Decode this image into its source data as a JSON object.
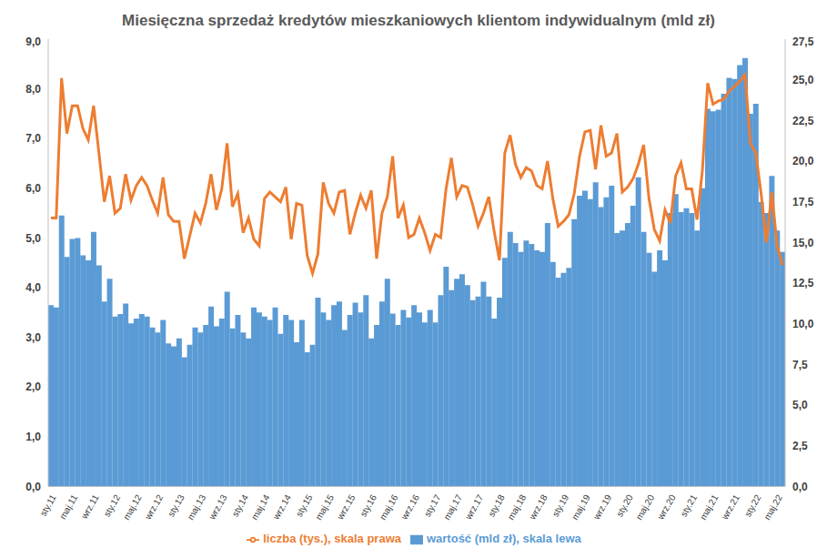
{
  "chart_data": {
    "type": "bar",
    "title": "Miesięczna sprzedaż kredytów mieszkaniowych klientom indywidualnym (mld zł)",
    "categories": [
      "sty.11",
      null,
      null,
      null,
      "maj.11",
      null,
      null,
      null,
      "wrz.11",
      null,
      null,
      null,
      "sty.12",
      null,
      null,
      null,
      "maj.12",
      null,
      null,
      null,
      "wrz.12",
      null,
      null,
      null,
      "sty.13",
      null,
      null,
      null,
      "maj.13",
      null,
      null,
      null,
      "wrz.13",
      null,
      null,
      null,
      "sty.14",
      null,
      null,
      null,
      "maj.14",
      null,
      null,
      null,
      "wrz.14",
      null,
      null,
      null,
      "sty.15",
      null,
      null,
      null,
      "maj.15",
      null,
      null,
      null,
      "wrz.15",
      null,
      null,
      null,
      "sty.16",
      null,
      null,
      null,
      "maj.16",
      null,
      null,
      null,
      "wrz.16",
      null,
      null,
      null,
      "sty.17",
      null,
      null,
      null,
      "maj.17",
      null,
      null,
      null,
      "wrz.17",
      null,
      null,
      null,
      "sty.18",
      null,
      null,
      null,
      "maj.18",
      null,
      null,
      null,
      "wrz.18",
      null,
      null,
      null,
      "sty.19",
      null,
      null,
      null,
      "maj.19",
      null,
      null,
      null,
      "wrz.19",
      null,
      null,
      null,
      "sty.20",
      null,
      null,
      null,
      "maj.20",
      null,
      null,
      null,
      "wrz.20",
      null,
      null,
      null,
      "sty.21",
      null,
      null,
      null,
      "maj.21",
      null,
      null,
      null,
      "wrz.21",
      null,
      null,
      null,
      "sty.22",
      null,
      null,
      null,
      "maj.22",
      null
    ],
    "series": [
      {
        "name": "wartość (mld zł), skala lewa",
        "type": "bar",
        "color": "#5b9bd5",
        "values": [
          3.65,
          3.6,
          5.45,
          4.62,
          4.98,
          5.0,
          4.65,
          4.55,
          5.12,
          4.45,
          3.72,
          4.18,
          3.42,
          3.47,
          3.68,
          3.28,
          3.38,
          3.47,
          3.42,
          3.2,
          3.1,
          3.35,
          2.88,
          2.82,
          2.98,
          2.6,
          2.85,
          3.2,
          3.1,
          3.25,
          3.62,
          3.22,
          3.38,
          3.92,
          3.18,
          3.45,
          3.1,
          2.98,
          3.6,
          3.5,
          3.42,
          3.35,
          3.6,
          3.07,
          3.45,
          3.35,
          2.9,
          3.35,
          2.7,
          2.85,
          3.8,
          3.5,
          3.35,
          3.65,
          3.72,
          3.15,
          3.45,
          3.7,
          3.5,
          3.85,
          2.98,
          3.25,
          3.72,
          4.18,
          3.48,
          3.25,
          3.55,
          3.4,
          3.65,
          3.5,
          3.3,
          3.55,
          3.3,
          3.85,
          4.42,
          3.95,
          4.18,
          4.27,
          4.05,
          3.75,
          3.82,
          4.12,
          3.82,
          3.38,
          3.8,
          4.6,
          5.12,
          4.9,
          4.72,
          4.95,
          4.88,
          4.75,
          4.72,
          5.3,
          4.52,
          4.2,
          4.3,
          4.4,
          5.38,
          5.85,
          5.95,
          5.78,
          6.12,
          5.62,
          5.82,
          6.05,
          5.1,
          5.15,
          5.3,
          5.65,
          6.22,
          5.12,
          4.7,
          4.32,
          4.75,
          4.55,
          5.5,
          5.88,
          5.52,
          5.6,
          5.5,
          5.15,
          6.0,
          7.6,
          7.55,
          7.58,
          7.9,
          8.22,
          8.2,
          8.48,
          8.62,
          7.5,
          7.7,
          5.72,
          5.5,
          6.25,
          5.15,
          4.72
        ]
      },
      {
        "name": "liczba (tys.), skala prawa",
        "type": "line",
        "axis": "y2",
        "color": "#ed7d31",
        "values": [
          16.5,
          16.5,
          25.1,
          21.7,
          23.4,
          23.4,
          22.0,
          21.3,
          23.4,
          20.5,
          17.5,
          19.1,
          16.8,
          17.1,
          19.2,
          17.6,
          18.5,
          19.0,
          18.5,
          17.6,
          16.8,
          19.0,
          16.7,
          16.3,
          16.3,
          14.0,
          15.4,
          16.8,
          16.2,
          17.4,
          19.2,
          17.0,
          18.3,
          21.1,
          17.2,
          18.0,
          15.6,
          16.5,
          15.2,
          14.8,
          17.7,
          18.1,
          17.8,
          17.5,
          18.4,
          15.2,
          17.4,
          17.3,
          14.2,
          13.1,
          14.3,
          18.7,
          17.4,
          16.8,
          18.1,
          18.2,
          15.5,
          16.8,
          17.9,
          17.1,
          18.2,
          14.0,
          16.8,
          17.8,
          20.3,
          16.5,
          17.3,
          15.3,
          15.5,
          16.5,
          15.6,
          14.5,
          15.5,
          15.3,
          18.3,
          20.2,
          17.8,
          18.5,
          18.4,
          17.3,
          16.0,
          16.8,
          17.8,
          15.7,
          13.9,
          20.5,
          21.6,
          19.8,
          19.0,
          19.6,
          19.4,
          18.5,
          18.3,
          20.0,
          17.7,
          16.0,
          16.3,
          16.7,
          18.0,
          20.3,
          21.8,
          21.9,
          19.5,
          22.2,
          20.3,
          20.5,
          21.7,
          18.1,
          18.4,
          18.9,
          19.8,
          21.0,
          17.7,
          15.8,
          15.1,
          17.0,
          16.2,
          19.1,
          19.9,
          18.3,
          18.3,
          16.4,
          19.4,
          24.8,
          23.5,
          23.7,
          23.8,
          24.3,
          24.6,
          24.9,
          25.3,
          21.1,
          20.5,
          18.0,
          15.0,
          18.1,
          14.8,
          13.6
        ]
      }
    ],
    "ylim": [
      0,
      9
    ],
    "yticks": [
      {
        "value": 0,
        "label": "0,0"
      },
      {
        "value": 1,
        "label": "1,0"
      },
      {
        "value": 2,
        "label": "2,0"
      },
      {
        "value": 3,
        "label": "3,0"
      },
      {
        "value": 4,
        "label": "4,0"
      },
      {
        "value": 5,
        "label": "5,0"
      },
      {
        "value": 6,
        "label": "6,0"
      },
      {
        "value": 7,
        "label": "7,0"
      },
      {
        "value": 8,
        "label": "8,0"
      },
      {
        "value": 9,
        "label": "9,0"
      }
    ],
    "y2lim": [
      0,
      27.5
    ],
    "y2ticks": [
      {
        "value": 0,
        "label": "0,0"
      },
      {
        "value": 2.5,
        "label": "2,5"
      },
      {
        "value": 5,
        "label": "5,0"
      },
      {
        "value": 7.5,
        "label": "7,5"
      },
      {
        "value": 10,
        "label": "10,0"
      },
      {
        "value": 12.5,
        "label": "12,5"
      },
      {
        "value": 15,
        "label": "15,0"
      },
      {
        "value": 17.5,
        "label": "17,5"
      },
      {
        "value": 20,
        "label": "20,0"
      },
      {
        "value": 22.5,
        "label": "22,5"
      },
      {
        "value": 25,
        "label": "25,0"
      },
      {
        "value": 27.5,
        "label": "27,5"
      }
    ],
    "grid": false,
    "legend": "bottom"
  }
}
